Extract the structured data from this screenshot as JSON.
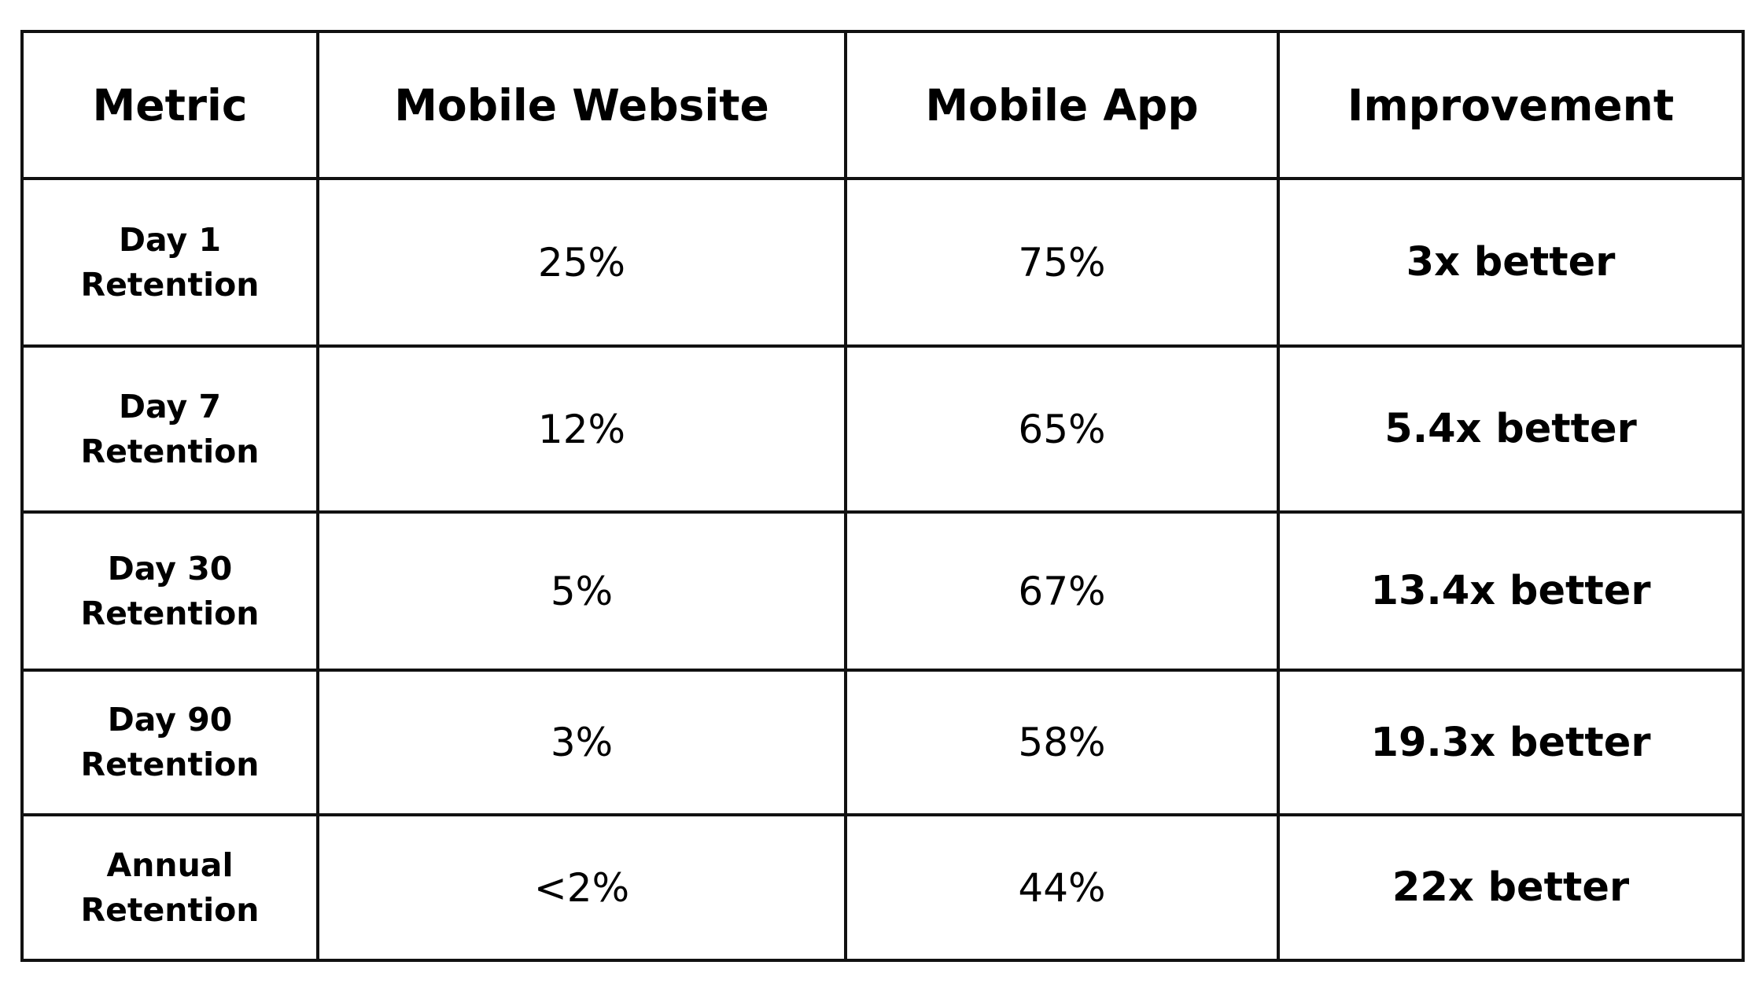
{
  "table": {
    "headers": [
      "Metric",
      "Mobile Website",
      "Mobile App",
      "Improvement"
    ],
    "rows": [
      {
        "metric": "Day 1 Retention",
        "mobile_website": "25%",
        "mobile_app": "75%",
        "improvement": "3x better"
      },
      {
        "metric": "Day 7 Retention",
        "mobile_website": "12%",
        "mobile_app": "65%",
        "improvement": "5.4x better"
      },
      {
        "metric": "Day 30 Retention",
        "mobile_website": "5%",
        "mobile_app": "67%",
        "improvement": "13.4x better"
      },
      {
        "metric": "Day 90 Retention",
        "mobile_website": "3%",
        "mobile_app": "58%",
        "improvement": "19.3x better"
      },
      {
        "metric": "Annual Retention",
        "mobile_website": "<2%",
        "mobile_app": "44%",
        "improvement": "22x better"
      }
    ]
  }
}
